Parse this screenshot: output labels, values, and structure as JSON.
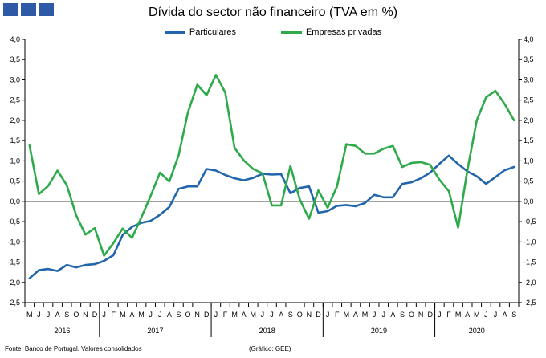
{
  "header": {
    "title": "Dívida do sector não financeiro (TVA em %)",
    "logo_color": "#2e59a7"
  },
  "footer": {
    "source": "Fonte: Banco de Portugal. Valores consolidados",
    "credit": "(Gráfico: GEE)"
  },
  "chart_data": {
    "type": "line",
    "title": "Dívida do sector não financeiro (TVA em %)",
    "ylim": [
      -2.5,
      4.0
    ],
    "y_ticks": [
      "4,0",
      "3,5",
      "3,0",
      "2,5",
      "2,0",
      "1,5",
      "1,0",
      "0,5",
      "0,0",
      "-0,5",
      "-1,0",
      "-1,5",
      "-2,0",
      "-2,5"
    ],
    "y2_ticks": [
      "4,0",
      "3,5",
      "3,0",
      "2,5",
      "2,0",
      "1,5",
      "1,0",
      "0,5",
      "0,0",
      "-0,5",
      "-1,0",
      "-1,5",
      "-2,0",
      "-2,5"
    ],
    "grid": false,
    "legend_position": "top",
    "x": [
      "M",
      "J",
      "J",
      "A",
      "S",
      "O",
      "N",
      "D",
      "J",
      "F",
      "M",
      "A",
      "M",
      "J",
      "J",
      "A",
      "S",
      "O",
      "N",
      "D",
      "J",
      "F",
      "M",
      "A",
      "M",
      "J",
      "J",
      "A",
      "S",
      "O",
      "N",
      "D",
      "J",
      "F",
      "M",
      "A",
      "M",
      "J",
      "J",
      "A",
      "S",
      "O",
      "N",
      "D",
      "J",
      "F",
      "M",
      "A",
      "M",
      "J",
      "J",
      "A",
      "S"
    ],
    "years": [
      {
        "label": "2016",
        "start": 0,
        "end": 7
      },
      {
        "label": "2017",
        "start": 8,
        "end": 19
      },
      {
        "label": "2018",
        "start": 20,
        "end": 31
      },
      {
        "label": "2019",
        "start": 32,
        "end": 43
      },
      {
        "label": "2020",
        "start": 44,
        "end": 52
      }
    ],
    "series": [
      {
        "name": "Particulares",
        "color": "#2166ac",
        "values": [
          -1.9,
          -1.7,
          -1.67,
          -1.72,
          -1.57,
          -1.63,
          -1.57,
          -1.55,
          -1.47,
          -1.33,
          -0.83,
          -0.63,
          -0.53,
          -0.48,
          -0.33,
          -0.14,
          0.31,
          0.37,
          0.37,
          0.8,
          0.76,
          0.65,
          0.57,
          0.52,
          0.58,
          0.68,
          0.66,
          0.67,
          0.2,
          0.33,
          0.37,
          -0.28,
          -0.24,
          -0.11,
          -0.09,
          -0.12,
          -0.04,
          0.16,
          0.1,
          0.1,
          0.43,
          0.47,
          0.57,
          0.71,
          0.93,
          1.13,
          0.92,
          0.74,
          0.62,
          0.43,
          0.6,
          0.77,
          0.85
        ]
      },
      {
        "name": "Empresas privadas",
        "color": "#2eaa4a",
        "values": [
          1.38,
          0.18,
          0.38,
          0.76,
          0.4,
          -0.34,
          -0.82,
          -0.66,
          -1.34,
          -1.03,
          -0.67,
          -0.9,
          -0.4,
          0.14,
          0.71,
          0.49,
          1.14,
          2.2,
          2.88,
          2.62,
          3.12,
          2.69,
          1.32,
          1.01,
          0.8,
          0.69,
          -0.1,
          -0.1,
          0.87,
          0.05,
          -0.43,
          0.27,
          -0.16,
          0.37,
          1.41,
          1.37,
          1.18,
          1.18,
          1.3,
          1.37,
          0.85,
          0.95,
          0.97,
          0.9,
          0.53,
          0.25,
          -0.65,
          0.78,
          2.0,
          2.57,
          2.73,
          2.4,
          2.0
        ]
      }
    ]
  }
}
